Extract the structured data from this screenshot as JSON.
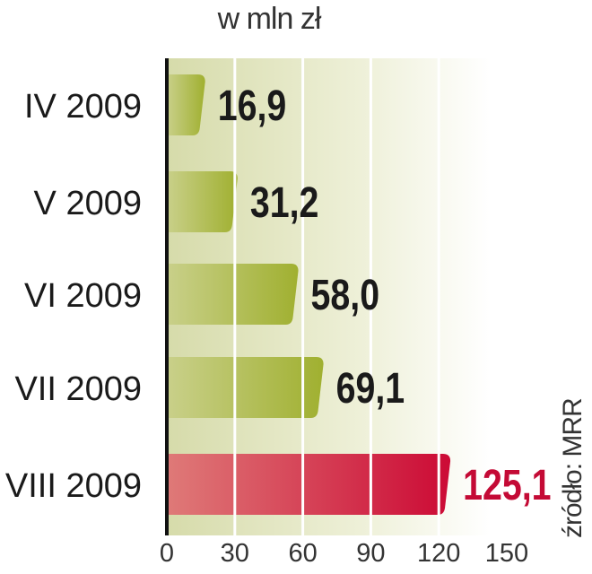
{
  "chart_data": {
    "type": "bar",
    "orientation": "horizontal",
    "title": "w mln zł",
    "categories": [
      "IV 2009",
      "V 2009",
      "VI 2009",
      "VII 2009",
      "VIII 2009"
    ],
    "values": [
      16.9,
      31.2,
      58.0,
      69.1,
      125.1
    ],
    "value_labels": [
      "16,9",
      "31,2",
      "58,0",
      "69,1",
      "125,1"
    ],
    "highlight_index": 4,
    "xlim": [
      0,
      150
    ],
    "xticks": [
      0,
      30,
      60,
      90,
      120,
      150
    ],
    "grid": true,
    "source": "źródło: MRR",
    "colors": {
      "bar": "#a4b339",
      "highlight": "#cc0a35",
      "label": "#1a1a1a",
      "highlight_label": "#c40a35"
    }
  }
}
